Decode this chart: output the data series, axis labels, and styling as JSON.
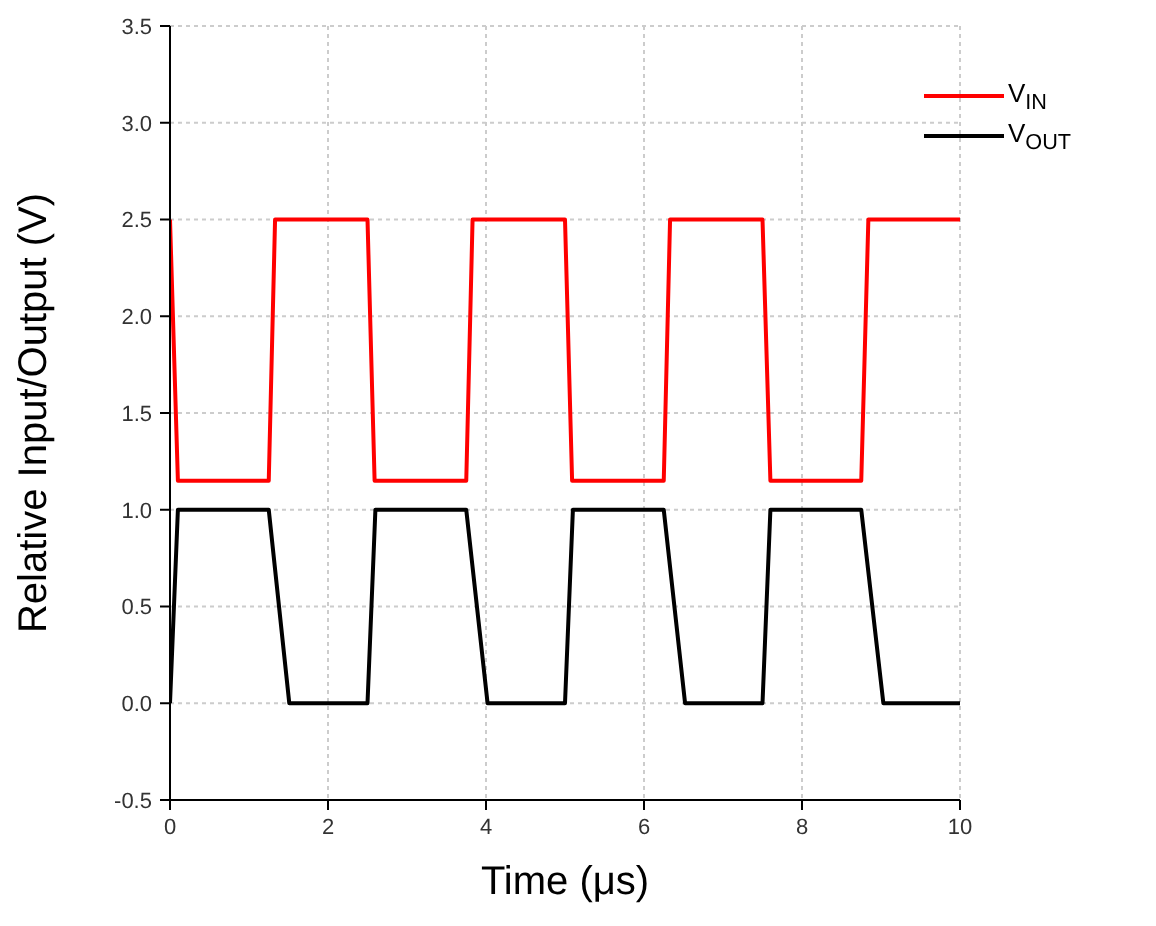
{
  "chart_data": {
    "type": "line",
    "xlabel": "Time (μs)",
    "ylabel": "Relative Input/Output (V)",
    "xlim": [
      0,
      10
    ],
    "xticks": [
      0,
      2,
      4,
      6,
      8,
      10
    ],
    "ylim": [
      -0.5,
      3.5
    ],
    "yticks": [
      {
        "value": -0.5,
        "label": "-0.5"
      },
      {
        "value": 0,
        "label": "0.0"
      },
      {
        "value": 0.5,
        "label": "0.5"
      },
      {
        "value": 1,
        "label": "1.0"
      },
      {
        "value": 1.5,
        "label": "1.5"
      },
      {
        "value": 2,
        "label": "2.0"
      },
      {
        "value": 2.5,
        "label": "2.5"
      },
      {
        "value": 3,
        "label": "3.0"
      },
      {
        "value": 3.5,
        "label": "3.5"
      }
    ],
    "grid": true,
    "legend": "top right",
    "marker": "none",
    "line_style": "solid",
    "series": [
      {
        "name": "V$_{IN}$",
        "color": "#ff0000",
        "x": [
          0,
          0.1,
          1.25,
          1.33,
          2.5,
          2.59,
          3.75,
          3.83,
          5.0,
          5.09,
          6.25,
          6.33,
          7.5,
          7.6,
          8.75,
          8.84,
          10
        ],
        "values": [
          2.5,
          1.15,
          1.15,
          2.5,
          2.5,
          1.15,
          1.15,
          2.5,
          2.5,
          1.15,
          1.15,
          2.5,
          2.5,
          1.15,
          1.15,
          2.5,
          2.5
        ]
      },
      {
        "name": "V$_{OUT}$",
        "color": "#000000",
        "x": [
          0,
          0.1,
          1.25,
          1.51,
          2.5,
          2.6,
          3.75,
          4.02,
          5.0,
          5.1,
          6.25,
          6.52,
          7.5,
          7.6,
          8.75,
          9.03,
          10
        ],
        "values": [
          0,
          1,
          1,
          0,
          0,
          1,
          1,
          0,
          0,
          1,
          1,
          0,
          0,
          1,
          1,
          0,
          0
        ]
      }
    ]
  }
}
